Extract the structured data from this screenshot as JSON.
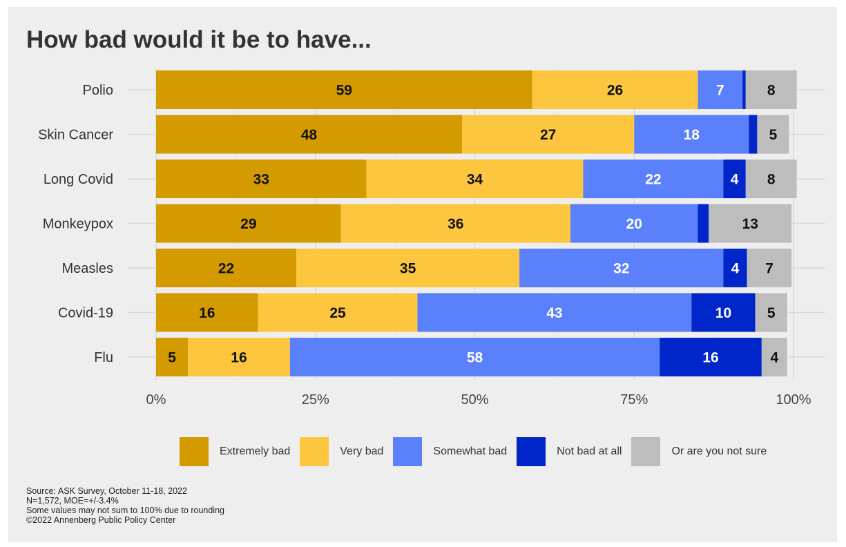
{
  "colors": {
    "extremely_bad": "#d39b00",
    "very_bad": "#fcc63f",
    "somewhat_bad": "#5b80fc",
    "not_bad_at_all": "#0026c9",
    "not_sure": "#bdbdbd",
    "background": "#eeeeee"
  },
  "chart_data": {
    "type": "bar",
    "orientation": "horizontal",
    "stacked": true,
    "title": "How bad would it be to have...",
    "categories": [
      "Polio",
      "Skin Cancer",
      "Long Covid",
      "Monkeypox",
      "Measles",
      "Covid-19",
      "Flu"
    ],
    "series": [
      {
        "name": "Extremely bad",
        "values": [
          59,
          48,
          33,
          29,
          22,
          16,
          5
        ],
        "labels": [
          "59",
          "48",
          "33",
          "29",
          "22",
          "16",
          "5"
        ]
      },
      {
        "name": "Very bad",
        "values": [
          26,
          27,
          34,
          36,
          35,
          25,
          16
        ],
        "labels": [
          "26",
          "27",
          "34",
          "36",
          "35",
          "25",
          "16"
        ]
      },
      {
        "name": "Somewhat bad",
        "values": [
          7,
          18,
          22,
          20,
          32,
          43,
          58
        ],
        "labels": [
          "7",
          "18",
          "22",
          "20",
          "32",
          "43",
          "58"
        ]
      },
      {
        "name": "Not bad at all",
        "values": [
          0.5,
          1.3,
          3.5,
          1.7,
          3.7,
          10,
          16
        ],
        "labels": [
          "",
          "",
          "4",
          "",
          "4",
          "10",
          "16"
        ]
      },
      {
        "name": "Or are you not sure",
        "values": [
          8,
          5,
          8,
          13,
          7,
          5,
          4
        ],
        "labels": [
          "8",
          "5",
          "8",
          "13",
          "7",
          "5",
          "4"
        ]
      }
    ],
    "x_ticks": [
      "0%",
      "25%",
      "50%",
      "75%",
      "100%"
    ],
    "x_tick_values": [
      0,
      25,
      50,
      75,
      100
    ],
    "xlim": [
      0,
      100
    ],
    "grid": true,
    "legend_position": "bottom"
  },
  "legend": [
    {
      "label": "Extremely bad",
      "color": "#d39b00"
    },
    {
      "label": "Very bad",
      "color": "#fcc63f"
    },
    {
      "label": "Somewhat bad",
      "color": "#5b80fc"
    },
    {
      "label": "Not bad at all",
      "color": "#0026c9"
    },
    {
      "label": "Or are you not sure",
      "color": "#bdbdbd"
    }
  ],
  "source": {
    "line1": "Source: ASK Survey, October 11-18, 2022",
    "line2": "N=1,572, MOE=+/-3.4%",
    "line3": "Some values may not sum to 100% due to rounding",
    "line4": "©2022 Annenberg Public Policy Center"
  }
}
